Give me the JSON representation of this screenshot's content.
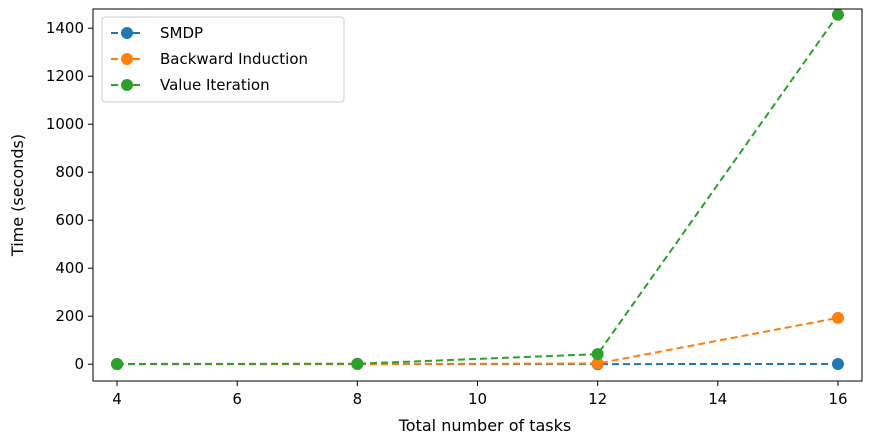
{
  "chart_data": {
    "type": "line",
    "title": "",
    "xlabel": "Total number of tasks",
    "ylabel": "Time (seconds)",
    "xlim": [
      3.6,
      16.4
    ],
    "ylim": [
      -70,
      1480
    ],
    "xticks": [
      4,
      6,
      8,
      10,
      12,
      14,
      16
    ],
    "yticks": [
      0,
      200,
      400,
      600,
      800,
      1000,
      1200,
      1400
    ],
    "x": [
      4,
      8,
      12,
      16
    ],
    "grid": false,
    "legend_position": "top-left",
    "line_style": "dashed",
    "marker": "circle",
    "series": [
      {
        "name": "SMDP",
        "color": "#1f77b4",
        "values": [
          0.2,
          0.3,
          0.5,
          0.8
        ]
      },
      {
        "name": "Backward Induction",
        "color": "#ff7f0e",
        "values": [
          0.3,
          0.8,
          3,
          193
        ]
      },
      {
        "name": "Value Iteration",
        "color": "#2ca02c",
        "values": [
          1,
          2,
          42,
          1456
        ]
      }
    ]
  }
}
